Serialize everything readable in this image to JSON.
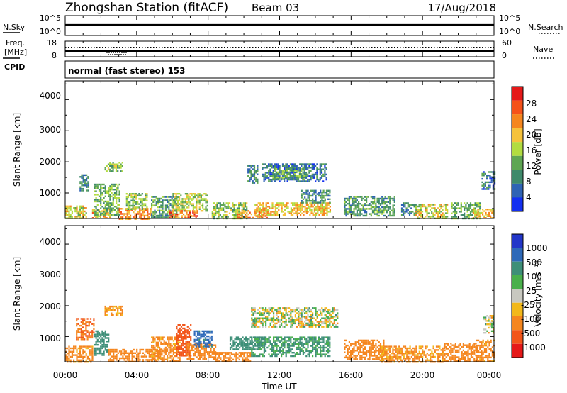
{
  "header": {
    "station": "Zhongshan Station (fitACF)",
    "beam": "Beam 03",
    "date": "17/Aug/2018"
  },
  "noise_panel": {
    "left_label": "N.Sky",
    "right_label": "N.Search",
    "left_ticks": [
      "10^5",
      "10^0"
    ],
    "right_ticks": [
      "10^5",
      "10^0"
    ]
  },
  "freq_panel": {
    "left_label_1": "Freq.",
    "left_label_2": "[MHz]",
    "right_label": "Nave",
    "left_ticks": [
      "18",
      "8"
    ],
    "right_ticks": [
      "60",
      "0"
    ]
  },
  "cpid_panel": {
    "label": "CPID",
    "text": "normal (fast stereo) 153"
  },
  "power_panel": {
    "ylabel": "Slant Range [km]",
    "yticks": [
      "4000",
      "3000",
      "2000",
      "1000"
    ],
    "colorbar_label": "Power [dB]",
    "colorbar_ticks": [
      "28",
      "24",
      "20",
      "16",
      "12",
      "8",
      "4"
    ],
    "colorbar_colors": [
      "#e51919",
      "#f5521a",
      "#f5861e",
      "#f6c23c",
      "#b2dc40",
      "#5fa653",
      "#3f8a6b",
      "#2f63b4",
      "#1430f0"
    ]
  },
  "velocity_panel": {
    "ylabel": "Slant Range [km]",
    "yticks": [
      "4000",
      "3000",
      "2000",
      "1000"
    ],
    "colorbar_label": "Velocity [m s⁻¹]",
    "colorbar_ticks": [
      "1000",
      "500",
      "100",
      "25",
      "-25",
      "-100",
      "-500",
      "-1000"
    ],
    "colorbar_colors": [
      "#2236c8",
      "#2e69b8",
      "#3e8f78",
      "#4ab04c",
      "#c8c8c0",
      "#f2b81a",
      "#f5861e",
      "#f2551a",
      "#e51919"
    ]
  },
  "x_axis": {
    "label": "Time UT",
    "ticks": [
      "00:00",
      "04:00",
      "08:00",
      "12:00",
      "16:00",
      "20:00",
      "00:00"
    ]
  },
  "chart_data": {
    "type": "heatmap",
    "title": "Zhongshan Station (fitACF) Beam 03 17/Aug/2018",
    "xlabel": "Time UT",
    "ylabel": "Slant Range [km]",
    "xlim": [
      0,
      24
    ],
    "ylim": [
      180,
      4600
    ],
    "power": [
      {
        "t0": 0.0,
        "t1": 1.2,
        "r0": 200,
        "r1": 600,
        "db": 20
      },
      {
        "t0": 0.8,
        "t1": 1.3,
        "r0": 1100,
        "r1": 1600,
        "db": 10
      },
      {
        "t0": 1.5,
        "t1": 2.5,
        "r0": 180,
        "r1": 500,
        "db": 24
      },
      {
        "t0": 1.6,
        "t1": 3.0,
        "r0": 300,
        "r1": 1300,
        "db": 14
      },
      {
        "t0": 2.2,
        "t1": 3.2,
        "r0": 1700,
        "r1": 2000,
        "db": 16
      },
      {
        "t0": 3.0,
        "t1": 4.8,
        "r0": 180,
        "r1": 520,
        "db": 26
      },
      {
        "t0": 3.4,
        "t1": 4.6,
        "r0": 500,
        "r1": 1000,
        "db": 16
      },
      {
        "t0": 4.8,
        "t1": 6.2,
        "r0": 200,
        "r1": 900,
        "db": 12
      },
      {
        "t0": 5.8,
        "t1": 7.4,
        "r0": 180,
        "r1": 450,
        "db": 28
      },
      {
        "t0": 6.0,
        "t1": 8.0,
        "r0": 400,
        "r1": 1000,
        "db": 18
      },
      {
        "t0": 8.2,
        "t1": 10.2,
        "r0": 200,
        "r1": 700,
        "db": 16
      },
      {
        "t0": 9.6,
        "t1": 11.4,
        "r0": 180,
        "r1": 450,
        "db": 26
      },
      {
        "t0": 10.2,
        "t1": 10.8,
        "r0": 1300,
        "r1": 1900,
        "db": 10
      },
      {
        "t0": 10.6,
        "t1": 14.8,
        "r0": 300,
        "r1": 700,
        "db": 22
      },
      {
        "t0": 11.0,
        "t1": 14.6,
        "r0": 1350,
        "r1": 1950,
        "db": 8
      },
      {
        "t0": 11.6,
        "t1": 13.4,
        "r0": 1450,
        "r1": 1800,
        "db": 14
      },
      {
        "t0": 13.2,
        "t1": 14.8,
        "r0": 700,
        "r1": 1100,
        "db": 10
      },
      {
        "t0": 15.6,
        "t1": 18.4,
        "r0": 250,
        "r1": 900,
        "db": 12
      },
      {
        "t0": 18.8,
        "t1": 19.6,
        "r0": 300,
        "r1": 700,
        "db": 10
      },
      {
        "t0": 19.6,
        "t1": 21.4,
        "r0": 180,
        "r1": 650,
        "db": 20
      },
      {
        "t0": 21.6,
        "t1": 23.2,
        "r0": 200,
        "r1": 700,
        "db": 14
      },
      {
        "t0": 22.8,
        "t1": 24.0,
        "r0": 180,
        "r1": 500,
        "db": 22
      },
      {
        "t0": 23.3,
        "t1": 24.0,
        "r0": 1100,
        "r1": 1700,
        "db": 8
      }
    ],
    "velocity": [
      {
        "t0": 0.0,
        "t1": 1.5,
        "r0": 200,
        "r1": 700,
        "v": -200
      },
      {
        "t0": 0.6,
        "t1": 1.6,
        "r0": 900,
        "r1": 1600,
        "v": -500
      },
      {
        "t0": 1.6,
        "t1": 2.4,
        "r0": 400,
        "r1": 1200,
        "v": 300
      },
      {
        "t0": 2.2,
        "t1": 3.2,
        "r0": 1700,
        "r1": 2000,
        "v": -150
      },
      {
        "t0": 2.4,
        "t1": 5.4,
        "r0": 180,
        "r1": 600,
        "v": -250
      },
      {
        "t0": 4.8,
        "t1": 6.4,
        "r0": 200,
        "r1": 1000,
        "v": -200
      },
      {
        "t0": 6.2,
        "t1": 7.0,
        "r0": 400,
        "r1": 1400,
        "v": -800
      },
      {
        "t0": 6.8,
        "t1": 8.4,
        "r0": 300,
        "r1": 800,
        "v": -300
      },
      {
        "t0": 7.2,
        "t1": 8.2,
        "r0": 700,
        "r1": 1200,
        "v": 600
      },
      {
        "t0": 8.4,
        "t1": 10.4,
        "r0": 180,
        "r1": 500,
        "v": -250
      },
      {
        "t0": 9.2,
        "t1": 11.2,
        "r0": 600,
        "r1": 1000,
        "v": 250
      },
      {
        "t0": 10.4,
        "t1": 14.8,
        "r0": 350,
        "r1": 1000,
        "v": 150
      },
      {
        "t0": 10.4,
        "t1": 15.2,
        "r0": 1300,
        "r1": 1950,
        "v": 0
      },
      {
        "t0": 15.6,
        "t1": 17.8,
        "r0": 250,
        "r1": 900,
        "v": -300
      },
      {
        "t0": 17.6,
        "t1": 21.2,
        "r0": 200,
        "r1": 700,
        "v": -150
      },
      {
        "t0": 21.2,
        "t1": 23.0,
        "r0": 200,
        "r1": 800,
        "v": -350
      },
      {
        "t0": 23.0,
        "t1": 24.0,
        "r0": 200,
        "r1": 900,
        "v": -200
      },
      {
        "t0": 23.4,
        "t1": 24.0,
        "r0": 1100,
        "r1": 1700,
        "v": 0
      }
    ]
  }
}
